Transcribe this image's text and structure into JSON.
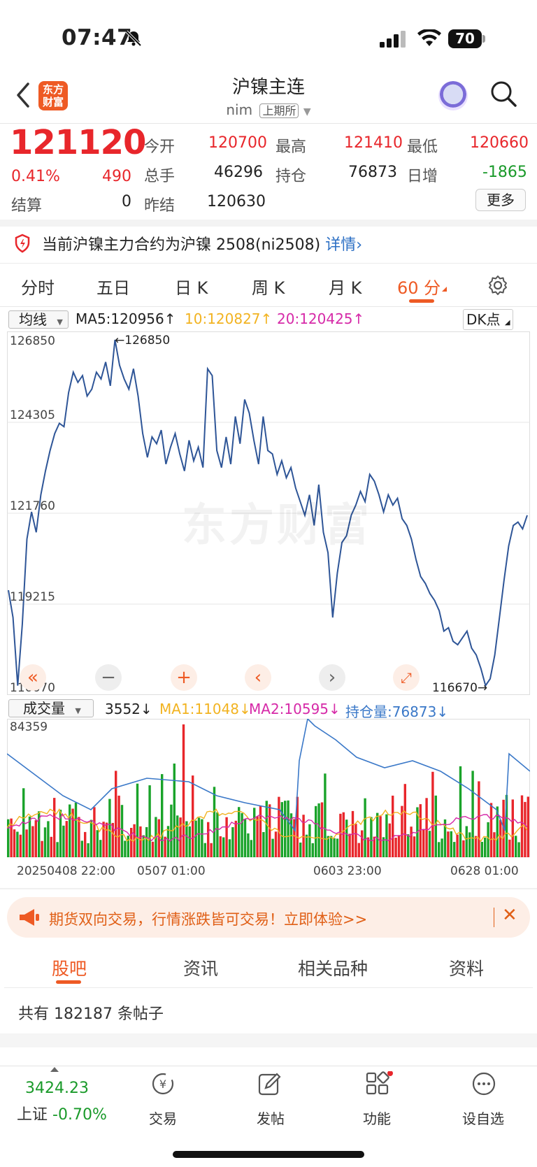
{
  "status_bar": {
    "time": "07:47",
    "battery": "70"
  },
  "header": {
    "logo_text_1": "东方",
    "logo_text_2": "财富",
    "title": "沪镍主连",
    "symbol": "nim",
    "exchange": "上期所"
  },
  "quote": {
    "price": "121120",
    "change_pct": "0.41%",
    "change": "490",
    "settle_label": "结算",
    "settle_value": "0",
    "open_label": "今开",
    "open_value": "120700",
    "high_label": "最高",
    "high_value": "121410",
    "low_label": "最低",
    "low_value": "120660",
    "volume_label": "总手",
    "volume_value": "46296",
    "oi_label": "持仓",
    "oi_value": "76873",
    "daily_inc_label": "日增",
    "daily_inc_value": "-1865",
    "prev_settle_label": "昨结",
    "prev_settle_value": "120630",
    "more_label": "更多"
  },
  "notice": {
    "text": "当前沪镍主力合约为沪镍 2508(ni2508)",
    "link": "详情"
  },
  "period_tabs": [
    "分时",
    "五日",
    "日 K",
    "周 K",
    "月 K",
    "60 分"
  ],
  "active_period": "60 分",
  "main_chart": {
    "indicator_select": "均线",
    "ma5": "MA5:120956",
    "ma10": "10:120827",
    "ma20": "20:120425",
    "dk_label": "DK点",
    "y_ticks": [
      "126850",
      "124305",
      "121760",
      "119215",
      "116670"
    ],
    "high_marker": "126850",
    "low_marker": "116670",
    "watermark": "东方财富"
  },
  "volume_chart": {
    "indicator_select": "成交量",
    "volume": "3552",
    "ma1": "MA1:11048",
    "ma2": "MA2:10595",
    "oi": "持仓量:76873",
    "y_max": "84359",
    "x_labels": [
      "20250408 22:00",
      "0507 01:00",
      "0603 23:00",
      "0628 01:00"
    ]
  },
  "chart_data": {
    "type": "line",
    "title": "",
    "ylim": [
      116670,
      126850
    ],
    "series": [
      {
        "name": "",
        "values": [
          119500,
          118700,
          116700,
          118500,
          121000,
          121800,
          121200,
          122300,
          123000,
          123600,
          124100,
          124400,
          124300,
          125300,
          125900,
          125600,
          125800,
          125200,
          125400,
          125900,
          125700,
          126200,
          125500,
          126850,
          126100,
          125700,
          125400,
          126000,
          125200,
          124100,
          123400,
          124000,
          123800,
          124200,
          123200,
          123700,
          124100,
          123500,
          123000,
          123900,
          123300,
          123700,
          123100,
          126000,
          125800,
          123600,
          123100,
          124000,
          123200,
          124600,
          123800,
          125100,
          124700,
          123900,
          123200,
          124600,
          123600,
          123500,
          122900,
          123300,
          122800,
          123100,
          122500,
          122100,
          121700,
          122300,
          121400,
          122600,
          121200,
          120600,
          118700,
          120000,
          120900,
          121100,
          121700,
          122000,
          122400,
          122100,
          122900,
          122700,
          122300,
          121800,
          122300,
          122000,
          122200,
          121600,
          121400,
          121000,
          120400,
          119900,
          119700,
          119400,
          119200,
          118900,
          118300,
          118400,
          118000,
          117900,
          118100,
          118300,
          117800,
          117600,
          117200,
          116700,
          116900,
          117600,
          118700,
          119800,
          120800,
          121400,
          121500,
          121300,
          121700
        ]
      }
    ]
  },
  "promo": {
    "text": "期货双向交易，行情涨跌皆可交易！立即体验>>"
  },
  "sub_tabs": [
    "股吧",
    "资讯",
    "相关品种",
    "资料"
  ],
  "posts_count_text": "共有 182187 条帖子",
  "bottom_bar": {
    "index_value": "3424.23",
    "index_name": "上证",
    "index_change": "-0.70%",
    "items": [
      "交易",
      "发帖",
      "功能",
      "设自选"
    ]
  }
}
